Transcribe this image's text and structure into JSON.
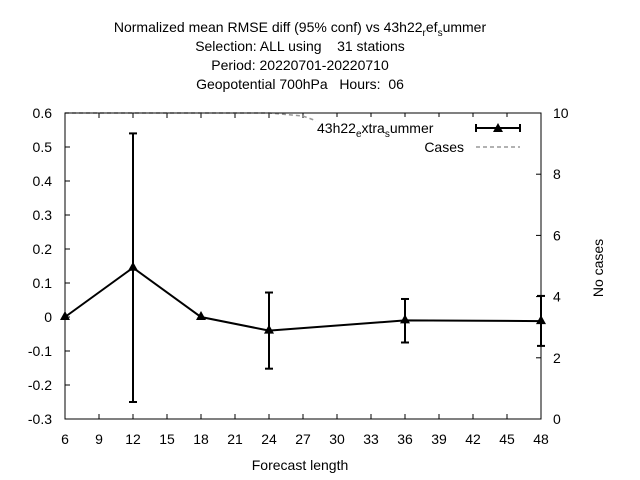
{
  "title_lines": [
    "Normalized mean RMSE diff (95% conf) vs 43h22_ref_summer",
    "Selection: ALL using    31 stations",
    "Period: 20220701-20220710",
    "Geopotential 700hPa   Hours:  06"
  ],
  "chart_data": {
    "type": "line",
    "xlabel": "Forecast length",
    "ylabel": "",
    "y2label": "No cases",
    "xlim": [
      6,
      48
    ],
    "ylim": [
      -0.3,
      0.6
    ],
    "y2lim": [
      0,
      10
    ],
    "x_ticks": [
      6,
      9,
      12,
      15,
      18,
      21,
      24,
      27,
      30,
      33,
      36,
      39,
      42,
      45,
      48
    ],
    "y_ticks": [
      -0.3,
      -0.2,
      -0.1,
      0,
      0.1,
      0.2,
      0.3,
      0.4,
      0.5,
      0.6
    ],
    "y2_ticks": [
      0,
      2,
      4,
      6,
      8,
      10
    ],
    "legend_position": "top-right",
    "series": [
      {
        "name": "43h22_extra_summer",
        "color": "#000000",
        "marker": "triangle",
        "x": [
          6,
          12,
          18,
          24,
          36,
          48
        ],
        "y": [
          0.0,
          0.145,
          0.0,
          -0.04,
          -0.01,
          -0.012
        ],
        "err_low": [
          0.0,
          -0.25,
          0.0,
          -0.152,
          -0.075,
          -0.085
        ],
        "err_high": [
          0.0,
          0.54,
          0.0,
          0.072,
          0.053,
          0.062
        ]
      },
      {
        "name": "Cases",
        "axis": "y2",
        "color": "#999999",
        "style": "dashed",
        "x": [
          6,
          24,
          27,
          30,
          33,
          36,
          42,
          48
        ],
        "y": [
          10,
          10,
          9.9,
          9.5,
          9.2,
          9.1,
          9.1,
          9.1
        ]
      }
    ]
  }
}
